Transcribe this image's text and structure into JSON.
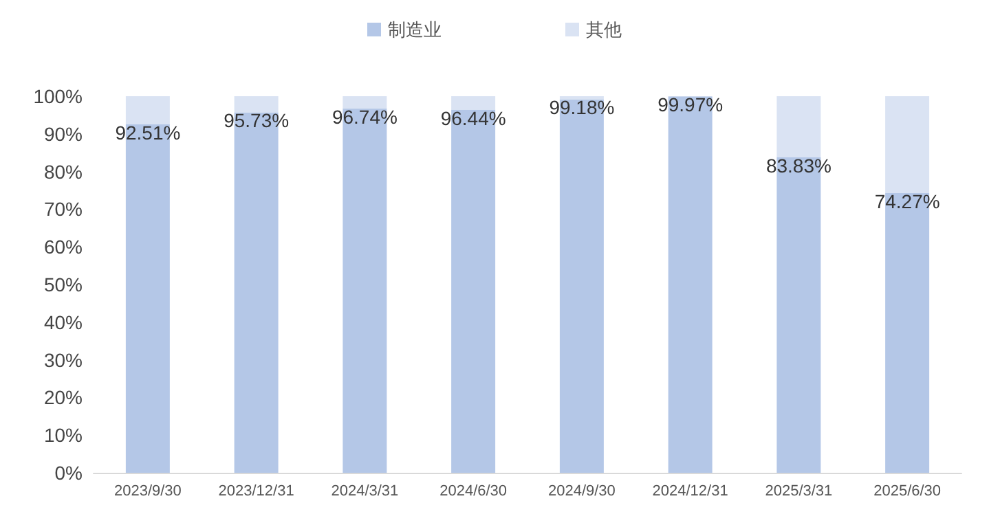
{
  "chart_data": {
    "type": "bar",
    "stacked": true,
    "categories": [
      "2023/9/30",
      "2023/12/31",
      "2024/3/31",
      "2024/6/30",
      "2024/9/30",
      "2024/12/31",
      "2025/3/31",
      "2025/6/30"
    ],
    "series": [
      {
        "name": "制造业",
        "color": "#b4c7e7",
        "values": [
          92.51,
          95.73,
          96.74,
          96.44,
          99.18,
          99.97,
          83.83,
          74.27
        ],
        "value_labels": [
          "92.51%",
          "95.73%",
          "96.74%",
          "96.44%",
          "99.18%",
          "99.97%",
          "83.83%",
          "74.27%"
        ]
      },
      {
        "name": "其他",
        "color": "#dae3f3",
        "values": [
          7.49,
          4.27,
          3.26,
          3.56,
          0.82,
          0.03,
          16.17,
          25.73
        ]
      }
    ],
    "ylim": [
      0,
      100
    ],
    "yticks": [
      {
        "value": 0,
        "label": "0%"
      },
      {
        "value": 10,
        "label": "10%"
      },
      {
        "value": 20,
        "label": "20%"
      },
      {
        "value": 30,
        "label": "30%"
      },
      {
        "value": 40,
        "label": "40%"
      },
      {
        "value": 50,
        "label": "50%"
      },
      {
        "value": 60,
        "label": "60%"
      },
      {
        "value": 70,
        "label": "70%"
      },
      {
        "value": 80,
        "label": "80%"
      },
      {
        "value": 90,
        "label": "90%"
      },
      {
        "value": 100,
        "label": "100%"
      }
    ],
    "grid": false,
    "legend": "top"
  }
}
